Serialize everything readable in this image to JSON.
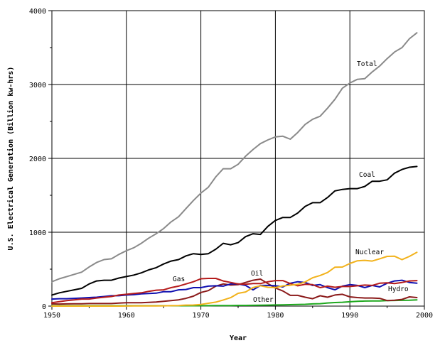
{
  "chart_data": {
    "type": "line",
    "title": "",
    "xlabel": "Year",
    "ylabel": "U.S. Electrical Generation (Billion kw-hrs)",
    "xlim": [
      1950,
      2000
    ],
    "ylim": [
      0,
      4000
    ],
    "x_ticks": [
      1950,
      1960,
      1970,
      1980,
      1990,
      2000
    ],
    "y_ticks": [
      0,
      1000,
      2000,
      3000,
      4000
    ],
    "grid": true,
    "x": [
      1950,
      1951,
      1952,
      1953,
      1954,
      1955,
      1956,
      1957,
      1958,
      1959,
      1960,
      1961,
      1962,
      1963,
      1964,
      1965,
      1966,
      1967,
      1968,
      1969,
      1970,
      1971,
      1972,
      1973,
      1974,
      1975,
      1976,
      1977,
      1978,
      1979,
      1980,
      1981,
      1982,
      1983,
      1984,
      1985,
      1986,
      1987,
      1988,
      1989,
      1990,
      1991,
      1992,
      1993,
      1994,
      1995,
      1996,
      1997,
      1998,
      1999
    ],
    "series": [
      {
        "name": "Total",
        "color": "#8a8a8a",
        "values": [
          330,
          370,
          400,
          430,
          460,
          530,
          590,
          630,
          640,
          700,
          750,
          790,
          850,
          920,
          980,
          1050,
          1140,
          1210,
          1320,
          1430,
          1530,
          1610,
          1750,
          1860,
          1860,
          1920,
          2030,
          2120,
          2200,
          2250,
          2290,
          2300,
          2260,
          2350,
          2460,
          2530,
          2570,
          2680,
          2800,
          2950,
          3020,
          3070,
          3080,
          3170,
          3250,
          3350,
          3440,
          3500,
          3620,
          3700
        ]
      },
      {
        "name": "Coal",
        "color": "#000000",
        "values": [
          150,
          180,
          200,
          220,
          240,
          300,
          340,
          350,
          350,
          380,
          400,
          420,
          450,
          490,
          520,
          570,
          610,
          630,
          680,
          710,
          700,
          710,
          770,
          850,
          830,
          860,
          940,
          980,
          970,
          1080,
          1160,
          1200,
          1200,
          1260,
          1350,
          1400,
          1400,
          1470,
          1560,
          1580,
          1590,
          1590,
          1620,
          1690,
          1690,
          1710,
          1800,
          1850,
          1880,
          1890
        ]
      },
      {
        "name": "Nuclear",
        "color": "#f2b21b",
        "values": [
          0,
          0,
          0,
          0,
          0,
          0,
          0,
          0,
          0,
          0,
          1,
          2,
          2,
          3,
          3,
          4,
          6,
          8,
          13,
          14,
          22,
          38,
          54,
          83,
          114,
          173,
          191,
          251,
          276,
          255,
          251,
          273,
          283,
          294,
          328,
          384,
          414,
          455,
          527,
          529,
          577,
          613,
          619,
          610,
          640,
          673,
          675,
          629,
          673,
          728
        ]
      },
      {
        "name": "Gas",
        "color": "#b51b1b",
        "values": [
          45,
          60,
          75,
          85,
          95,
          95,
          110,
          120,
          130,
          150,
          160,
          170,
          180,
          200,
          215,
          220,
          250,
          270,
          300,
          330,
          370,
          375,
          375,
          340,
          320,
          300,
          295,
          305,
          305,
          330,
          345,
          345,
          305,
          275,
          295,
          290,
          250,
          270,
          255,
          265,
          265,
          275,
          285,
          280,
          310,
          315,
          305,
          320,
          340,
          345
        ]
      },
      {
        "name": "Oil",
        "color": "#8b1a1a",
        "values": [
          30,
          28,
          30,
          32,
          32,
          35,
          35,
          35,
          35,
          40,
          45,
          45,
          45,
          50,
          55,
          65,
          75,
          85,
          105,
          135,
          185,
          210,
          270,
          300,
          285,
          290,
          320,
          350,
          365,
          305,
          245,
          205,
          145,
          145,
          120,
          100,
          140,
          120,
          150,
          160,
          125,
          115,
          110,
          110,
          105,
          75,
          80,
          90,
          125,
          115
        ]
      },
      {
        "name": "Hydro",
        "color": "#1010b0",
        "values": [
          95,
          100,
          100,
          105,
          110,
          115,
          120,
          130,
          140,
          140,
          150,
          155,
          165,
          170,
          175,
          195,
          195,
          220,
          225,
          250,
          250,
          270,
          275,
          270,
          300,
          300,
          280,
          220,
          280,
          280,
          275,
          260,
          310,
          330,
          320,
          280,
          290,
          250,
          220,
          270,
          290,
          280,
          250,
          280,
          260,
          310,
          340,
          350,
          320,
          310
        ]
      },
      {
        "name": "Other",
        "color": "#1ea81e",
        "values": [
          5,
          5,
          5,
          5,
          5,
          5,
          5,
          5,
          5,
          5,
          5,
          5,
          5,
          5,
          5,
          5,
          5,
          5,
          5,
          5,
          6,
          6,
          7,
          7,
          8,
          10,
          10,
          11,
          12,
          13,
          15,
          17,
          19,
          21,
          24,
          30,
          33,
          42,
          48,
          52,
          59,
          64,
          68,
          69,
          70,
          75,
          76,
          78,
          80,
          85
        ]
      }
    ],
    "annotations": [
      "Total",
      "Coal",
      "Nuclear",
      "Gas",
      "Oil",
      "Hydro",
      "Other"
    ]
  }
}
